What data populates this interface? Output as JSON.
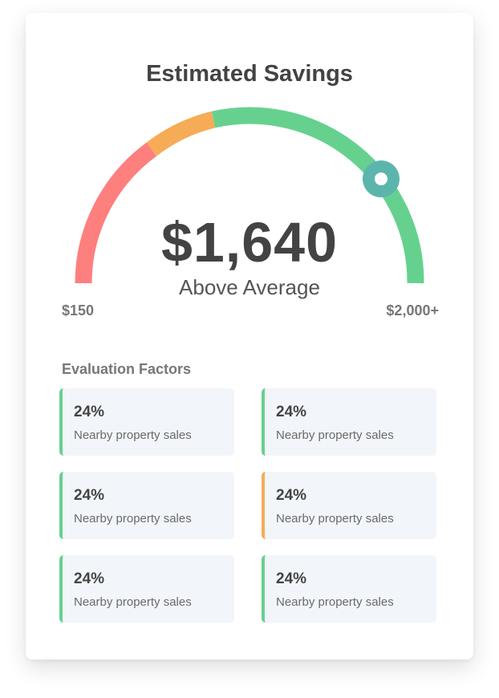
{
  "colors": {
    "low": "#fd7f7e",
    "mid": "#f6ab56",
    "high": "#66d18e",
    "marker": "#5cb5ad",
    "card_bg": "#f2f5fa"
  },
  "savings": {
    "title": "Estimated Savings",
    "amount": "$1,640",
    "rating": "Above Average",
    "range_min": "$150",
    "range_max": "$2,000+",
    "gauge_level_percent": 82
  },
  "factors": {
    "heading": "Evaluation Factors",
    "items": [
      {
        "value": "24%",
        "label": "Nearby property sales",
        "status": "good"
      },
      {
        "value": "24%",
        "label": "Nearby property sales",
        "status": "good"
      },
      {
        "value": "24%",
        "label": "Nearby property sales",
        "status": "good"
      },
      {
        "value": "24%",
        "label": "Nearby property sales",
        "status": "warn"
      },
      {
        "value": "24%",
        "label": "Nearby property sales",
        "status": "good"
      },
      {
        "value": "24%",
        "label": "Nearby property sales",
        "status": "good"
      }
    ]
  }
}
